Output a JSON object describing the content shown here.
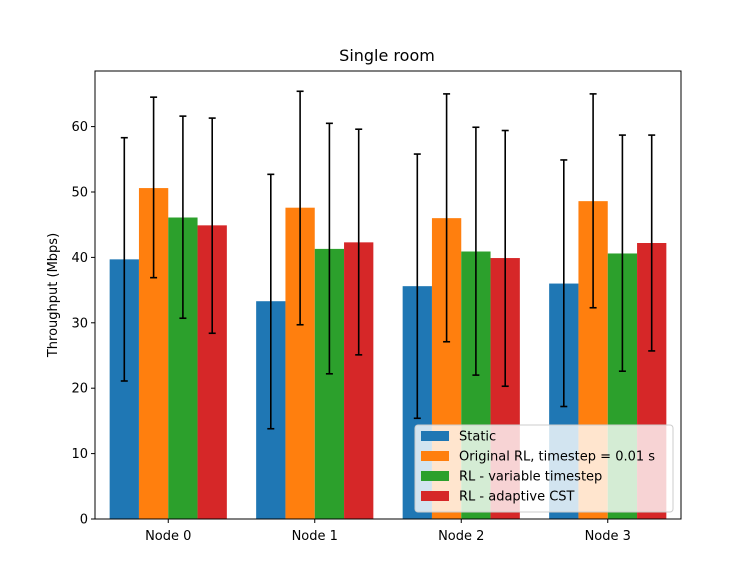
{
  "chart_data": {
    "type": "bar",
    "title": "Single room",
    "xlabel": "",
    "ylabel": "Throughput (Mbps)",
    "categories": [
      "Node 0",
      "Node 1",
      "Node 2",
      "Node 3"
    ],
    "ylim": [
      0,
      68.5
    ],
    "yticks": [
      0,
      10,
      20,
      30,
      40,
      50,
      60
    ],
    "grid": false,
    "legend_position": "lower-right",
    "series": [
      {
        "name": "Static",
        "color": "#1f77b4",
        "values": [
          39.7,
          33.3,
          35.6,
          36.0
        ],
        "err_low": [
          21.1,
          13.8,
          15.4,
          17.2
        ],
        "err_high": [
          58.3,
          52.7,
          55.8,
          54.9
        ]
      },
      {
        "name": "Original RL, timestep = 0.01 s",
        "color": "#ff7f0e",
        "values": [
          50.6,
          47.6,
          46.0,
          48.6
        ],
        "err_low": [
          36.9,
          29.7,
          27.1,
          32.3
        ],
        "err_high": [
          64.5,
          65.4,
          65.0,
          65.0
        ]
      },
      {
        "name": "RL - variable timestep",
        "color": "#2ca02c",
        "values": [
          46.1,
          41.3,
          40.9,
          40.6
        ],
        "err_low": [
          30.7,
          22.2,
          22.0,
          22.6
        ],
        "err_high": [
          61.6,
          60.5,
          59.9,
          58.7
        ]
      },
      {
        "name": "RL - adaptive CST",
        "color": "#d62728",
        "values": [
          44.9,
          42.3,
          39.9,
          42.2
        ],
        "err_low": [
          28.4,
          25.1,
          20.3,
          25.7
        ],
        "err_high": [
          61.3,
          59.6,
          59.4,
          58.7
        ]
      }
    ]
  }
}
